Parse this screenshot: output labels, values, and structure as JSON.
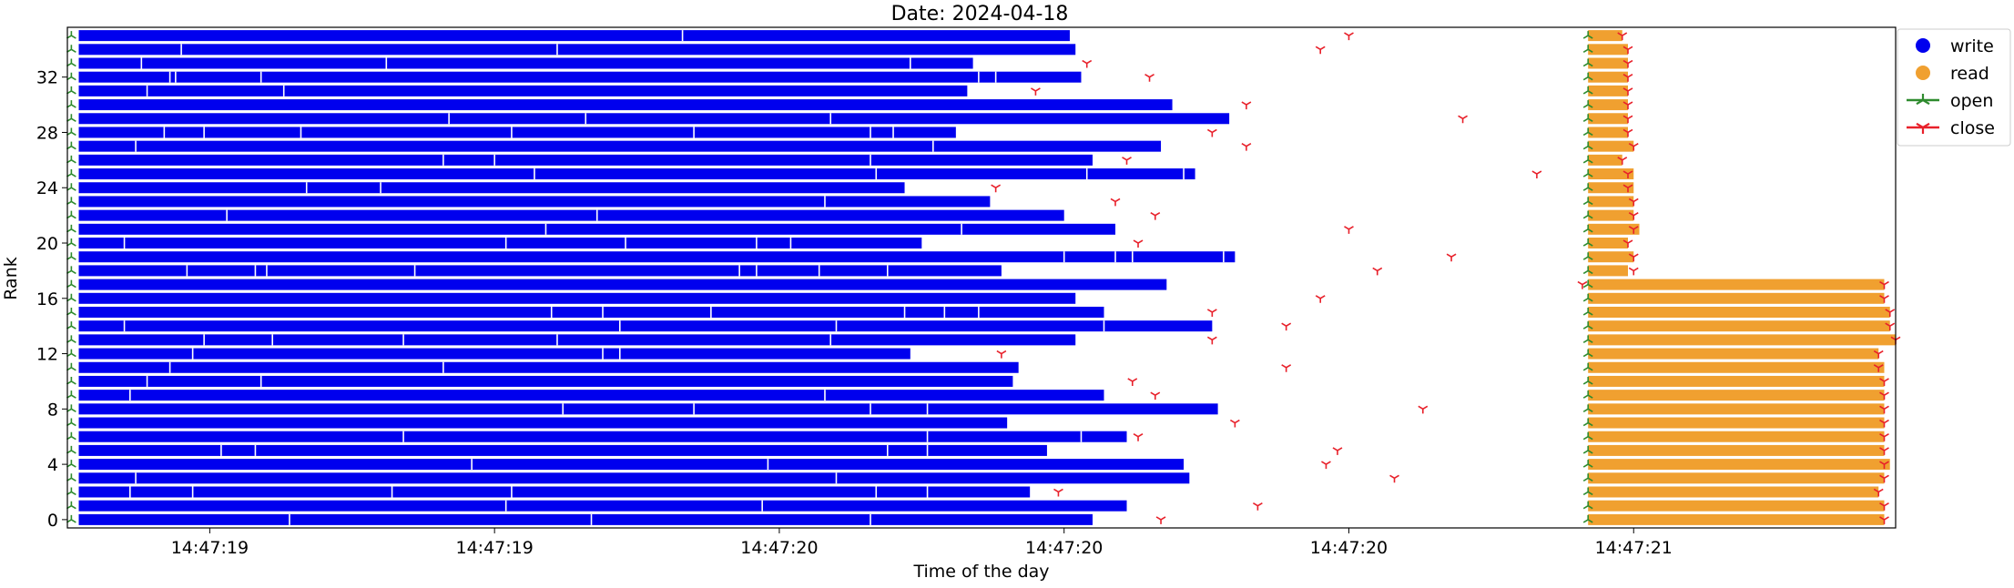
{
  "chart_data": {
    "type": "timeline",
    "title": "Date: 2024-04-18",
    "xlabel": "Time of the day",
    "ylabel": "Rank",
    "xlim": [
      0.0,
      3.21
    ],
    "ylim": [
      -0.6,
      35.6
    ],
    "x_unit": "seconds after 14:47:18.6",
    "x_ticks": [
      {
        "value": 0.25,
        "label": "14:47:19"
      },
      {
        "value": 0.75,
        "label": "14:47:19"
      },
      {
        "value": 1.25,
        "label": "14:47:20"
      },
      {
        "value": 1.75,
        "label": "14:47:20"
      },
      {
        "value": 2.25,
        "label": "14:47:20"
      },
      {
        "value": 2.75,
        "label": "14:47:21"
      }
    ],
    "y_ticks": [
      0,
      4,
      8,
      12,
      16,
      20,
      24,
      28,
      32
    ],
    "legend": {
      "position": "upper-right-outside",
      "entries": [
        {
          "label": "write",
          "marker": "circle",
          "color": "#0000ee"
        },
        {
          "label": "read",
          "marker": "circle",
          "color": "#f0a030"
        },
        {
          "label": "open",
          "marker": "tri-up",
          "color": "#2e8b2e"
        },
        {
          "label": "close",
          "marker": "tri-down",
          "color": "#e8202a"
        }
      ]
    },
    "colors": {
      "write": "#0000ee",
      "read": "#f0a030",
      "open": "#2e8b2e",
      "close": "#e8202a"
    },
    "open_time": 0.0,
    "read_open_time": 2.67,
    "read_start": 2.67,
    "ranks": [
      {
        "rank": 0,
        "write_end": 1.8,
        "write_breaks": [
          0.39,
          0.92,
          1.41
        ],
        "write_close": 1.92,
        "read_end": 3.19,
        "read_close": 3.19
      },
      {
        "rank": 1,
        "write_end": 1.86,
        "write_breaks": [
          0.77,
          1.22
        ],
        "write_close": 2.09,
        "read_end": 3.19,
        "read_close": 3.19
      },
      {
        "rank": 2,
        "write_end": 1.69,
        "write_breaks": [
          0.11,
          0.22,
          0.57,
          0.78,
          1.42,
          1.51
        ],
        "write_close": 1.74,
        "read_end": 3.18,
        "read_close": 3.18
      },
      {
        "rank": 3,
        "write_end": 1.97,
        "write_breaks": [
          0.12,
          1.35
        ],
        "write_close": 2.33,
        "read_end": 3.19,
        "read_close": 3.19
      },
      {
        "rank": 4,
        "write_end": 1.96,
        "write_breaks": [
          0.71,
          1.23
        ],
        "write_close": 2.21,
        "read_end": 3.2,
        "read_close": 3.19
      },
      {
        "rank": 5,
        "write_end": 1.72,
        "write_breaks": [
          0.27,
          0.33,
          1.44,
          1.51
        ],
        "write_close": 2.23,
        "read_end": 3.19,
        "read_close": 3.19
      },
      {
        "rank": 6,
        "write_end": 1.86,
        "write_breaks": [
          0.59,
          1.51,
          1.78
        ],
        "write_close": 1.88,
        "read_end": 3.19,
        "read_close": 3.19
      },
      {
        "rank": 7,
        "write_end": 1.65,
        "write_breaks": [],
        "write_close": 2.05,
        "read_end": 3.19,
        "read_close": 3.19
      },
      {
        "rank": 8,
        "write_end": 2.02,
        "write_breaks": [
          0.87,
          1.1,
          1.41,
          1.51
        ],
        "write_close": 2.38,
        "read_end": 3.19,
        "read_close": 3.19
      },
      {
        "rank": 9,
        "write_end": 1.82,
        "write_breaks": [
          0.11,
          1.33
        ],
        "write_close": 1.91,
        "read_end": 3.19,
        "read_close": 3.19
      },
      {
        "rank": 10,
        "write_end": 1.66,
        "write_breaks": [
          0.14,
          0.34
        ],
        "write_close": 1.87,
        "read_end": 3.19,
        "read_close": 3.19
      },
      {
        "rank": 11,
        "write_end": 1.67,
        "write_breaks": [
          0.18,
          0.66
        ],
        "write_close": 2.14,
        "read_end": 3.19,
        "read_close": 3.18
      },
      {
        "rank": 12,
        "write_end": 1.48,
        "write_breaks": [
          0.22,
          0.94,
          0.97
        ],
        "write_close": 1.64,
        "read_end": 3.18,
        "read_close": 3.18
      },
      {
        "rank": 13,
        "write_end": 1.77,
        "write_breaks": [
          0.24,
          0.36,
          0.59,
          0.86,
          1.34
        ],
        "write_close": 2.01,
        "read_end": 3.21,
        "read_close": 3.21
      },
      {
        "rank": 14,
        "write_end": 2.01,
        "write_breaks": [
          0.1,
          0.97,
          1.35,
          1.82
        ],
        "write_close": 2.14,
        "read_end": 3.2,
        "read_close": 3.2
      },
      {
        "rank": 15,
        "write_end": 1.82,
        "write_breaks": [
          0.85,
          0.94,
          1.13,
          1.47,
          1.54,
          1.6
        ],
        "write_close": 2.01,
        "read_end": 3.2,
        "read_close": 3.2
      },
      {
        "rank": 16,
        "write_end": 1.77,
        "write_breaks": [],
        "write_close": 2.2,
        "read_end": 3.19,
        "read_close": 3.19
      },
      {
        "rank": 17,
        "write_end": 1.93,
        "write_breaks": [],
        "write_close": 2.66,
        "read_end": 3.19,
        "read_close": 3.19
      },
      {
        "rank": 18,
        "write_end": 1.64,
        "write_breaks": [
          0.21,
          0.33,
          0.35,
          0.61,
          1.18,
          1.21,
          1.32,
          1.44
        ],
        "write_close": 2.3,
        "read_end": 2.74,
        "read_close": 2.75
      },
      {
        "rank": 19,
        "write_end": 2.05,
        "write_breaks": [
          1.75,
          1.84,
          1.87,
          2.03
        ],
        "write_close": 2.43,
        "read_end": 2.75,
        "read_close": 2.75
      },
      {
        "rank": 20,
        "write_end": 1.5,
        "write_breaks": [
          0.1,
          0.77,
          0.98,
          1.21,
          1.27
        ],
        "write_close": 1.88,
        "read_end": 2.74,
        "read_close": 2.74
      },
      {
        "rank": 21,
        "write_end": 1.84,
        "write_breaks": [
          0.84,
          1.57
        ],
        "write_close": 2.25,
        "read_end": 2.76,
        "read_close": 2.75
      },
      {
        "rank": 22,
        "write_end": 1.75,
        "write_breaks": [
          0.28,
          0.93
        ],
        "write_close": 1.91,
        "read_end": 2.75,
        "read_close": 2.75
      },
      {
        "rank": 23,
        "write_end": 1.62,
        "write_breaks": [
          1.33
        ],
        "write_close": 1.84,
        "read_end": 2.75,
        "read_close": 2.75
      },
      {
        "rank": 24,
        "write_end": 1.47,
        "write_breaks": [
          0.42,
          0.55
        ],
        "write_close": 1.63,
        "read_end": 2.75,
        "read_close": 2.74
      },
      {
        "rank": 25,
        "write_end": 1.98,
        "write_breaks": [
          0.82,
          1.42,
          1.79,
          1.96
        ],
        "write_close": 2.58,
        "read_end": 2.75,
        "read_close": 2.74
      },
      {
        "rank": 26,
        "write_end": 1.8,
        "write_breaks": [
          0.66,
          0.75,
          1.41
        ],
        "write_close": 1.86,
        "read_end": 2.73,
        "read_close": 2.73
      },
      {
        "rank": 27,
        "write_end": 1.92,
        "write_breaks": [
          0.12,
          1.52
        ],
        "write_close": 2.07,
        "read_end": 2.75,
        "read_close": 2.75
      },
      {
        "rank": 28,
        "write_end": 1.56,
        "write_breaks": [
          0.17,
          0.24,
          0.41,
          0.78,
          1.1,
          1.41,
          1.45
        ],
        "write_close": 2.01,
        "read_end": 2.74,
        "read_close": 2.74
      },
      {
        "rank": 29,
        "write_end": 2.04,
        "write_breaks": [
          0.67,
          0.91,
          1.34
        ],
        "write_close": 2.45,
        "read_end": 2.74,
        "read_close": 2.74
      },
      {
        "rank": 30,
        "write_end": 1.94,
        "write_breaks": [],
        "write_close": 2.07,
        "read_end": 2.74,
        "read_close": 2.74
      },
      {
        "rank": 31,
        "write_end": 1.58,
        "write_breaks": [
          0.14,
          0.38
        ],
        "write_close": 1.7,
        "read_end": 2.74,
        "read_close": 2.74
      },
      {
        "rank": 32,
        "write_end": 1.78,
        "write_breaks": [
          0.18,
          0.19,
          0.34,
          1.6,
          1.63
        ],
        "write_close": 1.9,
        "read_end": 2.74,
        "read_close": 2.74
      },
      {
        "rank": 33,
        "write_end": 1.59,
        "write_breaks": [
          0.13,
          0.56,
          1.48
        ],
        "write_close": 1.79,
        "read_end": 2.74,
        "read_close": 2.74
      },
      {
        "rank": 34,
        "write_end": 1.77,
        "write_breaks": [
          0.2,
          0.86
        ],
        "write_close": 2.2,
        "read_end": 2.74,
        "read_close": 2.74
      },
      {
        "rank": 35,
        "write_end": 1.76,
        "write_breaks": [
          1.08
        ],
        "write_close": 2.25,
        "read_end": 2.73,
        "read_close": 2.73
      }
    ]
  }
}
